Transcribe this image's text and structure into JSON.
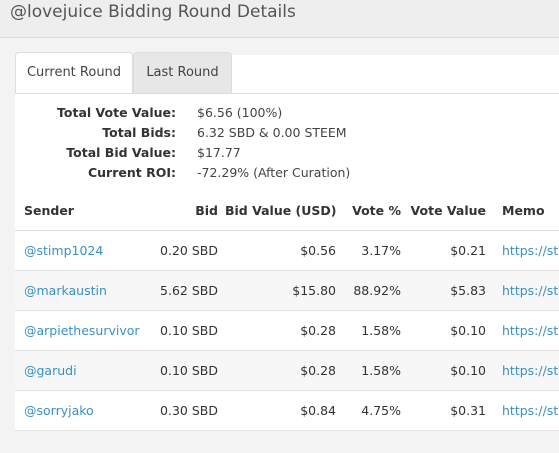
{
  "title": "@lovejuice Bidding Round Details",
  "tabs": [
    {
      "label": "Current Round",
      "active": true
    },
    {
      "label": "Last Round",
      "active": false
    }
  ],
  "summary": [
    {
      "label": "Total Vote Value:",
      "value": "$6.56 (100%)"
    },
    {
      "label": "Total Bids:",
      "value": "6.32 SBD & 0.00 STEEM"
    },
    {
      "label": "Total Bid Value:",
      "value": "$17.77"
    },
    {
      "label": "Current ROI:",
      "value": "-72.29% (After Curation)"
    }
  ],
  "table": {
    "headers": [
      "Sender",
      "Bid",
      "Bid Value (USD)",
      "Vote %",
      "Vote Value",
      "Memo"
    ],
    "rows": [
      {
        "sender": "@stimp1024",
        "bid": "0.20 SBD",
        "bid_value": "$0.56",
        "vote_pct": "3.17%",
        "vote_value": "$0.21",
        "memo": "https://ste"
      },
      {
        "sender": "@markaustin",
        "bid": "5.62 SBD",
        "bid_value": "$15.80",
        "vote_pct": "88.92%",
        "vote_value": "$5.83",
        "memo": "https://ste"
      },
      {
        "sender": "@arpiethesurvivor",
        "bid": "0.10 SBD",
        "bid_value": "$0.28",
        "vote_pct": "1.58%",
        "vote_value": "$0.10",
        "memo": "https://ste"
      },
      {
        "sender": "@garudi",
        "bid": "0.10 SBD",
        "bid_value": "$0.28",
        "vote_pct": "1.58%",
        "vote_value": "$0.10",
        "memo": "https://ste"
      },
      {
        "sender": "@sorryjako",
        "bid": "0.30 SBD",
        "bid_value": "$0.84",
        "vote_pct": "4.75%",
        "vote_value": "$0.31",
        "memo": "https://ste"
      }
    ]
  },
  "colors": {
    "link": "#3a8fc7",
    "row_shade": "#f7f7f7"
  }
}
